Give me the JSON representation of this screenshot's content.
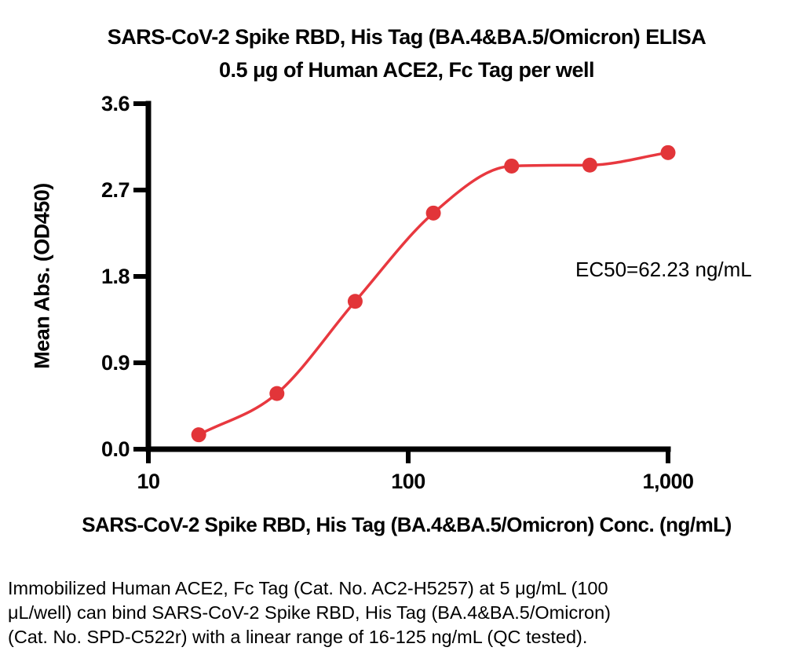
{
  "title": {
    "line1": "SARS-CoV-2 Spike RBD, His Tag (BA.4&BA.5/Omicron) ELISA",
    "line2": "0.5 μg of Human ACE2, Fc Tag per well"
  },
  "y_axis": {
    "label": "Mean Abs. (OD450)",
    "ticks": [
      {
        "value": 0.0,
        "label": "0.0"
      },
      {
        "value": 0.9,
        "label": "0.9"
      },
      {
        "value": 1.8,
        "label": "1.8"
      },
      {
        "value": 2.7,
        "label": "2.7"
      },
      {
        "value": 3.6,
        "label": "3.6"
      }
    ]
  },
  "x_axis": {
    "label": "SARS-CoV-2 Spike RBD, His Tag (BA.4&BA.5/Omicron) Conc. (ng/mL)",
    "ticks": [
      {
        "value": 10,
        "label": "10"
      },
      {
        "value": 100,
        "label": "100"
      },
      {
        "value": 1000,
        "label": "1,000"
      }
    ]
  },
  "annotation": {
    "ec50_label": "EC50=62.23 ng/mL"
  },
  "caption": {
    "line1": "Immobilized Human ACE2, Fc Tag (Cat. No. AC2-H5257) at 5 μg/mL (100",
    "line2": "μL/well) can bind SARS-CoV-2 Spike RBD, His Tag (BA.4&BA.5/Omicron)",
    "line3": "(Cat. No. SPD-C522r) with a linear range of 16-125 ng/mL (QC tested)."
  },
  "colors": {
    "curve": "#e8383f",
    "point": "#e23539",
    "axis": "#000000",
    "text": "#000000"
  },
  "chart_data": {
    "type": "scatter",
    "title": "SARS-CoV-2 Spike RBD, His Tag (BA.4&BA.5/Omicron) ELISA",
    "subtitle": "0.5 μg of Human ACE2, Fc Tag per well",
    "xlabel": "SARS-CoV-2 Spike RBD, His Tag (BA.4&BA.5/Omicron) Conc. (ng/mL)",
    "ylabel": "Mean Abs. (OD450)",
    "x_scale": "log10",
    "xlim": [
      10,
      1000
    ],
    "ylim": [
      0.0,
      3.6
    ],
    "grid": false,
    "legend": "none",
    "fit": "4PL sigmoidal",
    "ec50_ng_per_ml": 62.23,
    "x": [
      15.625,
      31.25,
      62.5,
      125,
      250,
      500,
      1000
    ],
    "y": [
      0.15,
      0.58,
      1.54,
      2.46,
      2.95,
      2.96,
      3.09
    ]
  }
}
